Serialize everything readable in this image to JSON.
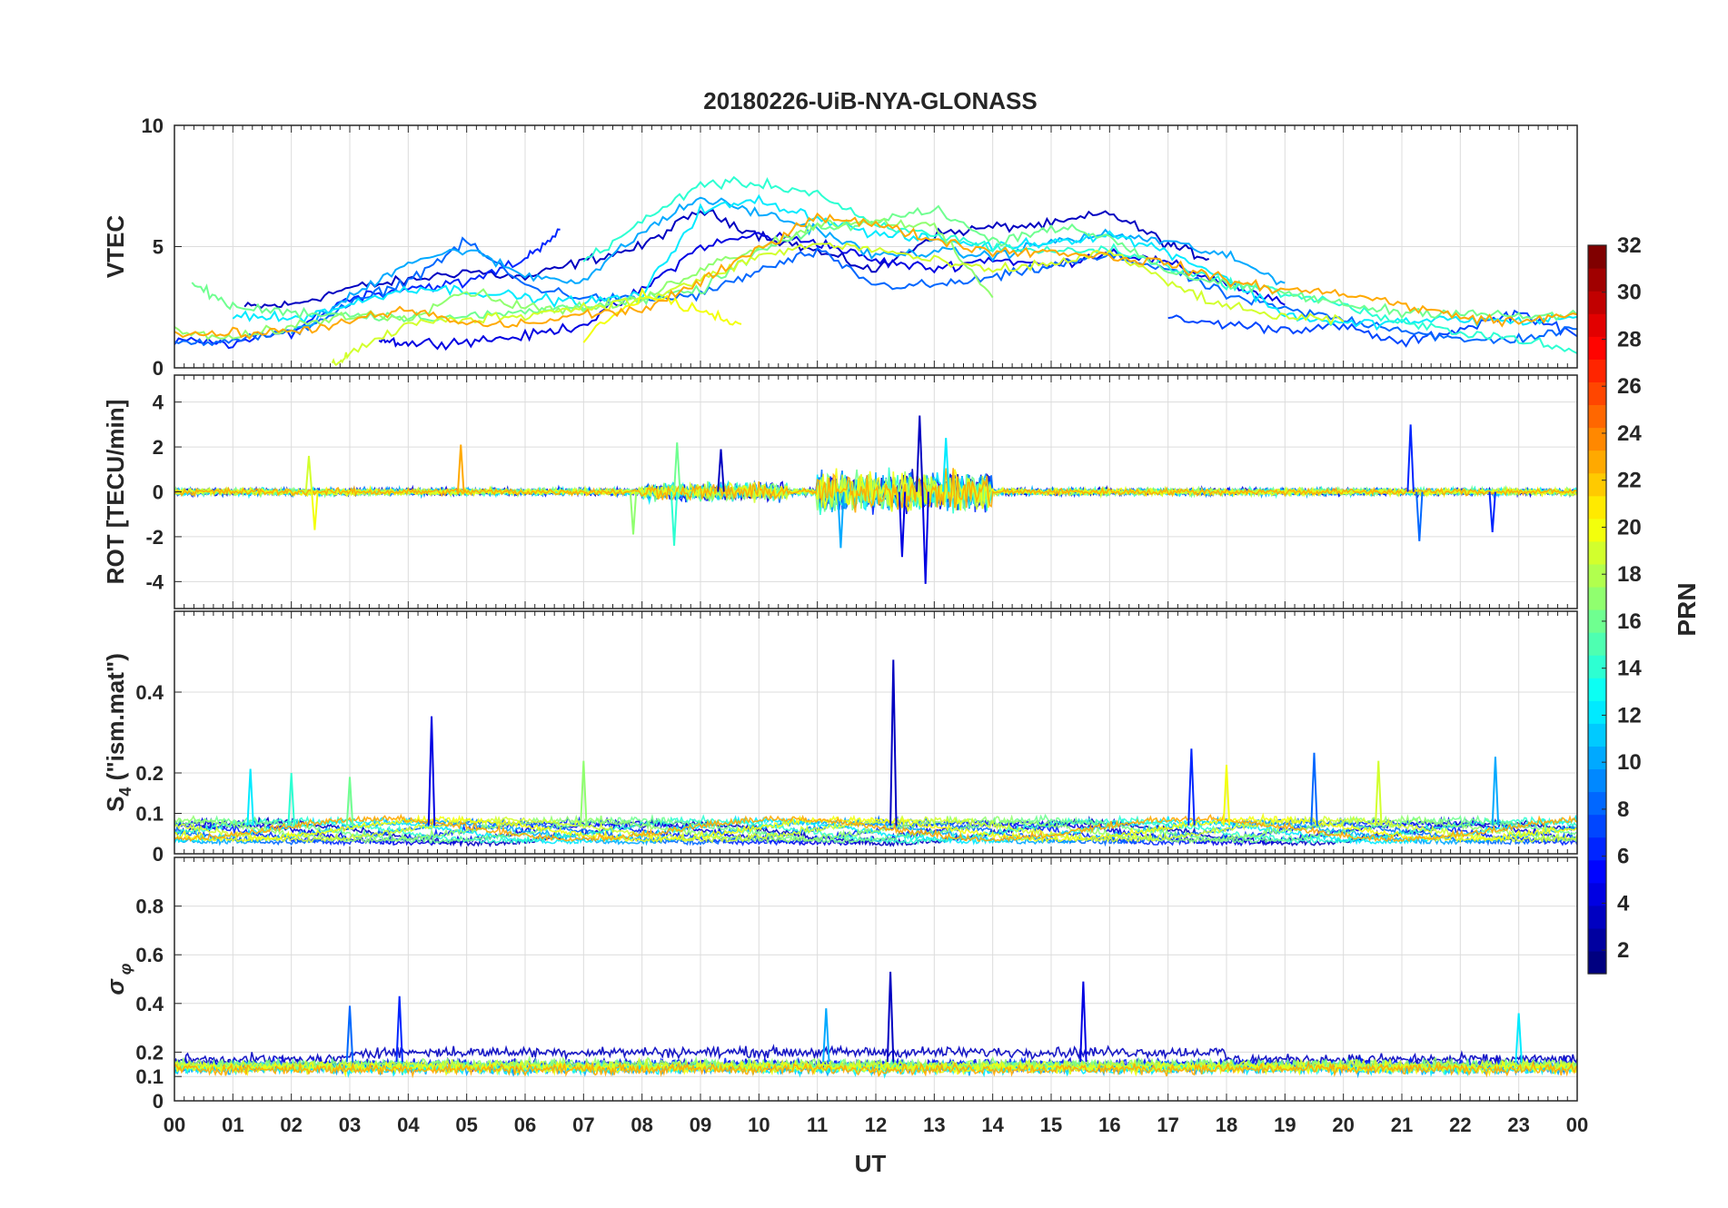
{
  "chart_data": {
    "type": "line",
    "title": "20180226-UiB-NYA-GLONASS",
    "xlabel": "UT",
    "x_ticks": [
      "00",
      "01",
      "02",
      "03",
      "04",
      "05",
      "06",
      "07",
      "08",
      "09",
      "10",
      "11",
      "12",
      "13",
      "14",
      "15",
      "16",
      "17",
      "18",
      "19",
      "20",
      "21",
      "22",
      "23",
      "00"
    ],
    "xlim": [
      0,
      24
    ],
    "grid": true,
    "panels": [
      {
        "ylabel": "VTEC",
        "ylim": [
          0,
          10
        ],
        "yticks": [
          0,
          5,
          10
        ],
        "series": [
          {
            "prn": 3,
            "x": [
              1.2,
              2,
              3,
              4,
              5,
              6,
              7,
              8,
              9,
              10,
              11,
              12,
              13,
              14,
              15,
              16,
              17,
              17.7
            ],
            "y": [
              2.5,
              2.6,
              3.3,
              3.6,
              4.0,
              3.7,
              4.4,
              5.0,
              6.5,
              5.5,
              4.8,
              4.0,
              5.5,
              5.8,
              5.9,
              6.4,
              5.1,
              4.5
            ]
          },
          {
            "prn": 4,
            "x": [
              3.5,
              4,
              5,
              6,
              7,
              8,
              9,
              10,
              11,
              12,
              13,
              14,
              15,
              16,
              17,
              18,
              19
            ],
            "y": [
              1.2,
              1.0,
              1.1,
              1.3,
              1.8,
              3.2,
              5.0,
              5.5,
              5.2,
              4.4,
              4.1,
              4.5,
              4.2,
              4.8,
              4.3,
              3.5,
              2.6
            ]
          },
          {
            "prn": 6,
            "x": [
              0,
              1,
              2,
              3,
              4,
              5,
              6,
              6.6
            ],
            "y": [
              1.1,
              1.0,
              1.5,
              2.9,
              3.3,
              3.5,
              4.5,
              5.7
            ]
          },
          {
            "prn": 7,
            "x": [
              17,
              18,
              19,
              20,
              21,
              22,
              23,
              24
            ],
            "y": [
              2.0,
              1.8,
              1.6,
              1.7,
              1.0,
              1.6,
              2.3,
              1.3
            ]
          },
          {
            "prn": 8,
            "x": [
              0,
              1,
              2,
              3,
              4,
              5,
              6,
              7,
              8,
              9,
              10,
              11,
              12,
              13,
              14,
              15,
              16,
              17,
              18,
              19,
              20,
              21,
              22,
              23,
              24
            ],
            "y": [
              1.0,
              1.2,
              1.4,
              2.6,
              3.6,
              5.2,
              3.4,
              2.9,
              2.8,
              3.0,
              4.0,
              4.8,
              3.4,
              3.4,
              3.7,
              4.2,
              4.6,
              4.1,
              3.0,
              2.4,
              2.0,
              1.6,
              1.1,
              1.2,
              1.6
            ]
          },
          {
            "prn": 10,
            "x": [
              2,
              3,
              4,
              5,
              6,
              7,
              8,
              9,
              10,
              11,
              12,
              13,
              14,
              15,
              16,
              17,
              18,
              19
            ],
            "y": [
              1.4,
              2.9,
              4.4,
              4.9,
              3.8,
              3.6,
              5.6,
              7.0,
              6.4,
              5.7,
              4.6,
              4.8,
              4.6,
              5.2,
              5.5,
              5.2,
              4.6,
              3.5
            ]
          },
          {
            "prn": 12,
            "x": [
              1,
              2,
              3,
              4,
              5,
              6,
              7,
              8,
              9,
              10,
              11,
              12,
              13,
              14,
              15,
              16,
              17,
              18,
              19,
              20,
              21,
              22,
              23,
              24
            ],
            "y": [
              2.2,
              2.0,
              2.6,
              3.3,
              3.2,
              2.9,
              2.7,
              3.0,
              6.5,
              6.9,
              6.2,
              5.5,
              5.3,
              5.0,
              5.2,
              5.5,
              4.8,
              3.7,
              2.2,
              1.8,
              1.9,
              2.0,
              1.9,
              2.1
            ]
          },
          {
            "prn": 14,
            "x": [
              7,
              8,
              9,
              10,
              11,
              12,
              13,
              14,
              15,
              16,
              17,
              18,
              19,
              20,
              21,
              22,
              23,
              24
            ],
            "y": [
              4.4,
              6.0,
              7.6,
              7.6,
              7.2,
              5.8,
              5.5,
              5.0,
              4.8,
              4.9,
              4.2,
              3.5,
              3.1,
              2.6,
              1.8,
              1.5,
              1.2,
              0.6
            ]
          },
          {
            "prn": 16,
            "x": [
              0.3,
              1,
              2,
              3,
              4,
              5,
              6,
              7,
              8,
              9,
              10,
              11,
              12,
              13,
              14,
              15,
              16,
              17,
              18,
              19,
              20,
              21,
              22,
              23,
              24
            ],
            "y": [
              3.5,
              2.5,
              2.3,
              2.2,
              2.1,
              2.1,
              2.3,
              2.6,
              2.8,
              3.2,
              4.8,
              5.7,
              6.0,
              6.6,
              5.2,
              5.8,
              5.4,
              4.0,
              3.4,
              3.1,
              2.6,
              2.3,
              2.3,
              2.1,
              2.2
            ]
          },
          {
            "prn": 17,
            "x": [
              0,
              1,
              2,
              3,
              4,
              5,
              6,
              7,
              8,
              9,
              10,
              11,
              12,
              13,
              14
            ],
            "y": [
              1.5,
              1.2,
              1.7,
              2.2,
              2.1,
              3.2,
              2.5,
              2.4,
              2.8,
              4.1,
              5.0,
              5.9,
              6.1,
              5.8,
              2.9
            ]
          },
          {
            "prn": 19,
            "x": [
              2.7,
              3,
              4,
              5,
              6,
              7,
              8,
              9,
              10,
              11,
              12,
              13,
              14,
              15,
              16,
              17,
              18,
              19,
              20
            ],
            "y": [
              0.1,
              0.6,
              1.8,
              2.0,
              2.2,
              2.5,
              2.8,
              3.6,
              4.6,
              5.1,
              4.9,
              4.4,
              4.0,
              4.3,
              4.8,
              3.5,
              2.5,
              2.1,
              1.9
            ]
          },
          {
            "prn": 20,
            "x": [
              7,
              8,
              9,
              9.7
            ],
            "y": [
              1.2,
              3.0,
              2.4,
              1.8
            ]
          },
          {
            "prn": 23,
            "x": [
              0,
              1,
              2,
              3,
              4,
              5,
              6,
              7,
              8,
              9,
              10,
              11,
              12,
              13,
              14,
              15,
              16,
              17,
              18,
              19,
              20,
              21,
              22,
              23,
              24
            ],
            "y": [
              1.4,
              1.4,
              1.5,
              1.9,
              2.4,
              1.8,
              1.8,
              2.2,
              2.4,
              3.5,
              4.9,
              6.3,
              5.9,
              5.3,
              4.8,
              4.8,
              4.6,
              4.3,
              3.6,
              3.2,
              3.1,
              2.6,
              2.1,
              1.9,
              2.2
            ]
          }
        ]
      },
      {
        "ylabel": "ROT [TECU/min]",
        "ylim": [
          -5.2,
          5.2
        ],
        "yticks": [
          -4,
          -2,
          0,
          2,
          4
        ],
        "spikes": [
          {
            "x": 12.75,
            "y": 3.4
          },
          {
            "x": 12.85,
            "y": -4.1
          },
          {
            "x": 21.15,
            "y": 3.0
          },
          {
            "x": 21.3,
            "y": -2.2
          },
          {
            "x": 11.4,
            "y": -2.5
          },
          {
            "x": 13.2,
            "y": 2.4
          },
          {
            "x": 8.55,
            "y": -2.4
          },
          {
            "x": 8.6,
            "y": 2.2
          },
          {
            "x": 7.85,
            "y": -1.9
          },
          {
            "x": 2.3,
            "y": 1.6
          },
          {
            "x": 2.4,
            "y": -1.7
          },
          {
            "x": 4.9,
            "y": 2.1
          },
          {
            "x": 9.35,
            "y": 1.9
          },
          {
            "x": 12.45,
            "y": -2.9
          },
          {
            "x": 22.55,
            "y": -1.8
          }
        ]
      },
      {
        "ylabel": "S_4 (\"ism.mat\")",
        "ylim": [
          0,
          0.6
        ],
        "yticks": [
          0,
          0.1,
          0.2,
          0.4
        ],
        "spikes": [
          {
            "x": 12.3,
            "y": 0.48
          },
          {
            "x": 4.4,
            "y": 0.34
          },
          {
            "x": 17.4,
            "y": 0.26
          },
          {
            "x": 19.5,
            "y": 0.25
          },
          {
            "x": 22.6,
            "y": 0.24
          },
          {
            "x": 1.3,
            "y": 0.21
          },
          {
            "x": 2.0,
            "y": 0.2
          },
          {
            "x": 3.0,
            "y": 0.19
          },
          {
            "x": 7.0,
            "y": 0.23
          },
          {
            "x": 20.6,
            "y": 0.23
          },
          {
            "x": 18.0,
            "y": 0.22
          }
        ]
      },
      {
        "ylabel": "σ_φ",
        "ylim": [
          0,
          1
        ],
        "yticks": [
          0,
          0.1,
          0.2,
          0.4,
          0.6,
          0.8
        ],
        "spikes": [
          {
            "x": 12.25,
            "y": 0.53
          },
          {
            "x": 15.55,
            "y": 0.49
          },
          {
            "x": 3.85,
            "y": 0.43
          },
          {
            "x": 3.0,
            "y": 0.39
          },
          {
            "x": 11.15,
            "y": 0.38
          },
          {
            "x": 23.0,
            "y": 0.36
          }
        ]
      }
    ],
    "colorbar": {
      "label": "PRN",
      "range": [
        1,
        32
      ],
      "ticks": [
        2,
        4,
        6,
        8,
        10,
        12,
        14,
        16,
        18,
        20,
        22,
        24,
        26,
        28,
        30,
        32
      ],
      "colormap": "jet"
    }
  }
}
